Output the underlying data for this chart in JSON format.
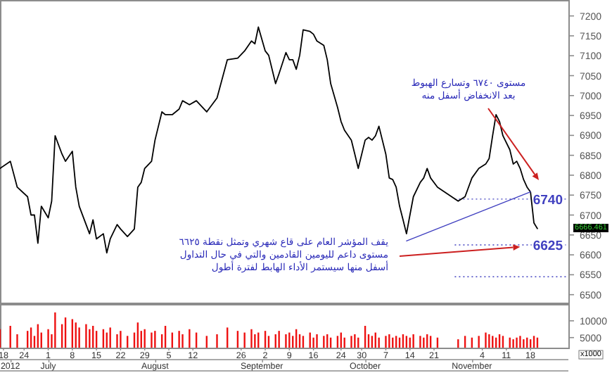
{
  "chart_data": [
    {
      "type": "line",
      "x": [
        "--06-17",
        "--06-20",
        "--06-22",
        "--06-25",
        "--06-26",
        "--06-27",
        "--06-28",
        "--06-29",
        "--07-01",
        "--07-02",
        "--07-03",
        "--07-05",
        "--07-06",
        "--07-08",
        "--07-09",
        "--07-10",
        "--07-12",
        "--07-13",
        "--07-14",
        "--07-15",
        "--07-17",
        "--07-18",
        "--07-19",
        "--07-21",
        "--07-22",
        "--07-24",
        "--07-26",
        "--07-27",
        "--07-28",
        "--07-29",
        "--07-31",
        "--08-01",
        "--08-03",
        "--08-04",
        "--08-06",
        "--08-08",
        "--08-09",
        "--08-11",
        "--08-13",
        "--08-16",
        "--08-19",
        "--08-22",
        "--08-25",
        "--08-27",
        "--08-29",
        "--08-30",
        "--08-31",
        "--09-02",
        "--09-03",
        "--09-05",
        "--09-06",
        "--09-08",
        "--09-09",
        "--09-10",
        "--09-11",
        "--09-12",
        "--09-13",
        "--09-15",
        "--09-16",
        "--09-17",
        "--09-19",
        "--09-20",
        "--09-21",
        "--09-23",
        "--09-24",
        "--09-25",
        "--09-27",
        "--09-28",
        "--09-29",
        "--10-01",
        "--10-02",
        "--10-03",
        "--10-04",
        "--10-05",
        "--10-07",
        "--10-08",
        "--10-09",
        "--10-10",
        "--10-11",
        "--10-12",
        "--10-13",
        "--10-14",
        "--10-15",
        "--10-17",
        "--10-18",
        "--10-19",
        "--10-20",
        "--10-22",
        "--10-28",
        "--10-30",
        "--11-01",
        "--11-03",
        "--11-05",
        "--11-06",
        "--11-07",
        "--11-08",
        "--11-09",
        "--11-10",
        "--11-12",
        "--11-13",
        "--11-14",
        "--11-15",
        "--11-16",
        "--11-17",
        "--11-18",
        "--11-19",
        "--11-20"
      ],
      "series": [
        {
          "color": "#000000",
          "values": [
            6817,
            6835,
            6770,
            6746,
            6700,
            6700,
            6629,
            6722,
            6693,
            6735,
            6899,
            6853,
            6835,
            6860,
            6770,
            6722,
            6676,
            6653,
            6688,
            6640,
            6653,
            6605,
            6640,
            6676,
            6665,
            6646,
            6665,
            6770,
            6782,
            6817,
            6835,
            6888,
            6959,
            6952,
            6952,
            6966,
            6987,
            6977,
            6987,
            6959,
            6994,
            7090,
            7094,
            7112,
            7137,
            7130,
            7172,
            7112,
            7101,
            7030,
            7055,
            7108,
            7090,
            7090,
            7066,
            7101,
            7165,
            7161,
            7154,
            7137,
            7126,
            7090,
            7030,
            6970,
            6935,
            6913,
            6888,
            6853,
            6817,
            6888,
            6895,
            6888,
            6899,
            6923,
            6853,
            6793,
            6789,
            6770,
            6722,
            6688,
            6653,
            6700,
            6746,
            6782,
            6793,
            6817,
            6793,
            6770,
            6735,
            6746,
            6793,
            6817,
            6828,
            6842,
            6899,
            6952,
            6935,
            6899,
            6864,
            6828,
            6835,
            6817,
            6789,
            6770,
            6758,
            6680,
            6666
          ]
        },
        {
          "type": "line",
          "x": [
            "--10-13",
            "--11-18"
          ],
          "values": [
            6635,
            6758
          ],
          "color": "#4040c0"
        }
      ],
      "xlim": [
        "--06-17",
        "--11-29"
      ],
      "ylim": [
        6480,
        7240
      ],
      "yticks": [
        6500,
        6550,
        6600,
        6650,
        6700,
        6750,
        6800,
        6850,
        6900,
        6950,
        7000,
        7050,
        7100,
        7150,
        7200
      ],
      "tick_labels": "y",
      "ref_lines": [
        {
          "axis": "y",
          "value": 6740,
          "label": "6740",
          "color": "#4040c0",
          "line_style": "dotted"
        },
        {
          "axis": "y",
          "value": 6625,
          "label": "6625",
          "color": "#4040c0",
          "line_style": "dotted"
        },
        {
          "axis": "y",
          "value": 6545,
          "color": "#4040c0",
          "line_style": "dotted",
          "label": null
        }
      ],
      "annotations": [
        "مستوى ٦٧٤٠ وتسارع الهبوط",
        "بعد الانخفاض أسفل منه",
        "يقف المؤشر العام على قاع شهري وتمثل نقطة ٦٦٢٥",
        {
          "text": "مستوى داعم لليومين القادمين والتي في حال التداول",
          "x": "--11-15",
          "y": 6620
        },
        "أسفل منها سيستمر الأداء الهابط لفترة أطول",
        "6666.461"
      ]
    },
    {
      "type": "bar",
      "x": [
        "--06-17",
        "--06-20",
        "--06-22",
        "--06-25",
        "--06-26",
        "--06-27",
        "--06-28",
        "--06-29",
        "--07-01",
        "--07-02",
        "--07-03",
        "--07-05",
        "--07-06",
        "--07-08",
        "--07-09",
        "--07-10",
        "--07-12",
        "--07-13",
        "--07-14",
        "--07-15",
        "--07-17",
        "--07-18",
        "--07-19",
        "--07-21",
        "--07-22",
        "--07-24",
        "--07-26",
        "--07-27",
        "--07-28",
        "--07-29",
        "--07-31",
        "--08-01",
        "--08-03",
        "--08-04",
        "--08-06",
        "--08-08",
        "--08-09",
        "--08-11",
        "--08-13",
        "--08-16",
        "--08-19",
        "--08-22",
        "--08-25",
        "--08-27",
        "--08-29",
        "--08-30",
        "--08-31",
        "--09-02",
        "--09-03",
        "--09-05",
        "--09-06",
        "--09-08",
        "--09-09",
        "--09-10",
        "--09-11",
        "--09-12",
        "--09-13",
        "--09-15",
        "--09-16",
        "--09-17",
        "--09-19",
        "--09-20",
        "--09-21",
        "--09-23",
        "--09-24",
        "--09-25",
        "--09-27",
        "--09-28",
        "--09-29",
        "--10-01",
        "--10-02",
        "--10-03",
        "--10-04",
        "--10-05",
        "--10-07",
        "--10-08",
        "--10-09",
        "--10-10",
        "--10-11",
        "--10-12",
        "--10-13",
        "--10-14",
        "--10-15",
        "--10-17",
        "--10-18",
        "--10-19",
        "--10-20",
        "--10-22",
        "--10-28",
        "--10-30",
        "--11-01",
        "--11-03",
        "--11-05",
        "--11-06",
        "--11-07",
        "--11-08",
        "--11-09",
        "--11-10",
        "--11-12",
        "--11-13",
        "--11-14",
        "--11-15",
        "--11-16",
        "--11-17",
        "--11-18",
        "--11-19",
        "--11-20"
      ],
      "values": [
        7500,
        8500,
        6000,
        7000,
        8000,
        5500,
        9000,
        6500,
        7500,
        6000,
        12500,
        9000,
        11000,
        10500,
        9500,
        8000,
        9000,
        7500,
        8500,
        7000,
        7500,
        6500,
        8000,
        6000,
        7000,
        5500,
        6500,
        9500,
        7000,
        7500,
        6500,
        7000,
        6000,
        8500,
        6500,
        7000,
        6000,
        7500,
        6500,
        5500,
        6000,
        8000,
        7000,
        6500,
        7500,
        6000,
        6500,
        7000,
        5500,
        6000,
        7000,
        6000,
        6500,
        5500,
        7500,
        6000,
        5500,
        6500,
        5000,
        6000,
        5500,
        6000,
        5000,
        5500,
        6500,
        5000,
        5500,
        6000,
        5000,
        8500,
        6000,
        5500,
        6500,
        5000,
        5500,
        6000,
        5000,
        5500,
        5000,
        6000,
        5500,
        5000,
        6000,
        5500,
        5000,
        6000,
        5500,
        5000,
        4500,
        5500,
        5000,
        5500,
        6500,
        6000,
        5500,
        5000,
        6000,
        5500,
        5000,
        4500,
        5000,
        5500,
        4500,
        5000,
        4500,
        5500,
        5000
      ],
      "color": "#ee1111",
      "xlim": [
        "--06-17",
        "--11-29"
      ],
      "ylim": [
        2000,
        15000
      ],
      "yticks": [
        5000,
        10000
      ],
      "xticks": [
        {
          "value": "--06-18",
          "label": "18"
        },
        {
          "value": "--06-24",
          "label": "24"
        },
        {
          "value": "--07-01",
          "label": "1"
        },
        {
          "value": "--07-08",
          "label": "8"
        },
        {
          "value": "--07-15",
          "label": "15"
        },
        {
          "value": "--07-22",
          "label": "22"
        },
        {
          "value": "--07-29",
          "label": "29"
        },
        {
          "value": "--08-05",
          "label": "5"
        },
        {
          "value": "--08-12",
          "label": "12"
        },
        {
          "value": "--08-26",
          "label": "26"
        },
        {
          "value": "--09-02",
          "label": "2"
        },
        {
          "value": "--09-09",
          "label": "9"
        },
        {
          "value": "--09-16",
          "label": "16"
        },
        {
          "value": "--09-24",
          "label": "24"
        },
        {
          "value": "--09-30",
          "label": "30"
        },
        {
          "value": "--10-07",
          "label": "7"
        },
        {
          "value": "--10-14",
          "label": "14"
        },
        {
          "value": "--10-21",
          "label": "21"
        },
        {
          "value": "--11-04",
          "label": "4"
        },
        {
          "value": "--11-11",
          "label": "11"
        },
        {
          "value": "--11-18",
          "label": "18"
        }
      ],
      "x2lim": [
        "2012-06-17",
        "2012-11-29"
      ],
      "x2ticks": [
        {
          "value": "2012-06-20",
          "label": "2012"
        },
        {
          "value": "2012-07-01",
          "label": "July"
        },
        {
          "value": "2012-08-01",
          "label": "August"
        },
        {
          "value": "2012-09-01",
          "label": "September"
        },
        {
          "value": "2012-10-01",
          "label": "October"
        },
        {
          "value": "2012-11-01",
          "label": "November"
        }
      ],
      "annotations": [
        "x1000"
      ]
    }
  ]
}
